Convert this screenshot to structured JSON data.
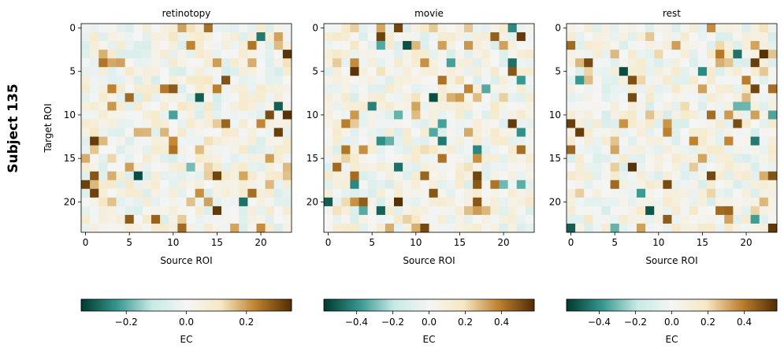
{
  "figure": {
    "suptitle": "Subject 135"
  },
  "chart_data": [
    {
      "type": "heatmap",
      "title": "retinotopy",
      "xlabel": "Source ROI",
      "ylabel": "Target ROI",
      "n_rows": 24,
      "n_cols": 24,
      "x_ticks": [
        0,
        5,
        10,
        15,
        20
      ],
      "y_ticks": [
        0,
        5,
        10,
        15,
        20
      ],
      "colormap": "BrBG_r",
      "colorbar": {
        "label": "EC",
        "range": [
          -0.35,
          0.35
        ],
        "ticks": [
          -0.2,
          0.0,
          0.2
        ]
      },
      "seed": 135
    },
    {
      "type": "heatmap",
      "title": "movie",
      "xlabel": "Source ROI",
      "ylabel": "",
      "n_rows": 24,
      "n_cols": 24,
      "x_ticks": [
        0,
        5,
        10,
        15,
        20
      ],
      "y_ticks": [
        0,
        5,
        10,
        15,
        20
      ],
      "colormap": "BrBG_r",
      "colorbar": {
        "label": "EC",
        "range": [
          -0.58,
          0.58
        ],
        "ticks": [
          -0.4,
          -0.2,
          0.0,
          0.2,
          0.4
        ]
      },
      "seed": 271
    },
    {
      "type": "heatmap",
      "title": "rest",
      "xlabel": "Source ROI",
      "ylabel": "",
      "n_rows": 24,
      "n_cols": 24,
      "x_ticks": [
        0,
        5,
        10,
        15,
        20
      ],
      "y_ticks": [
        0,
        5,
        10,
        15,
        20
      ],
      "colormap": "BrBG_r",
      "colorbar": {
        "label": "EC",
        "range": [
          -0.58,
          0.58
        ],
        "ticks": [
          -0.4,
          -0.2,
          0.0,
          0.2,
          0.4
        ]
      },
      "seed": 997
    }
  ],
  "colors": {
    "neg_dark": "#003c30",
    "neg_mid": "#35978f",
    "neg_light": "#c7eae5",
    "zero": "#f5f5f5",
    "pos_light": "#f6e8c3",
    "pos_mid": "#bf812d",
    "pos_dark": "#543005"
  }
}
